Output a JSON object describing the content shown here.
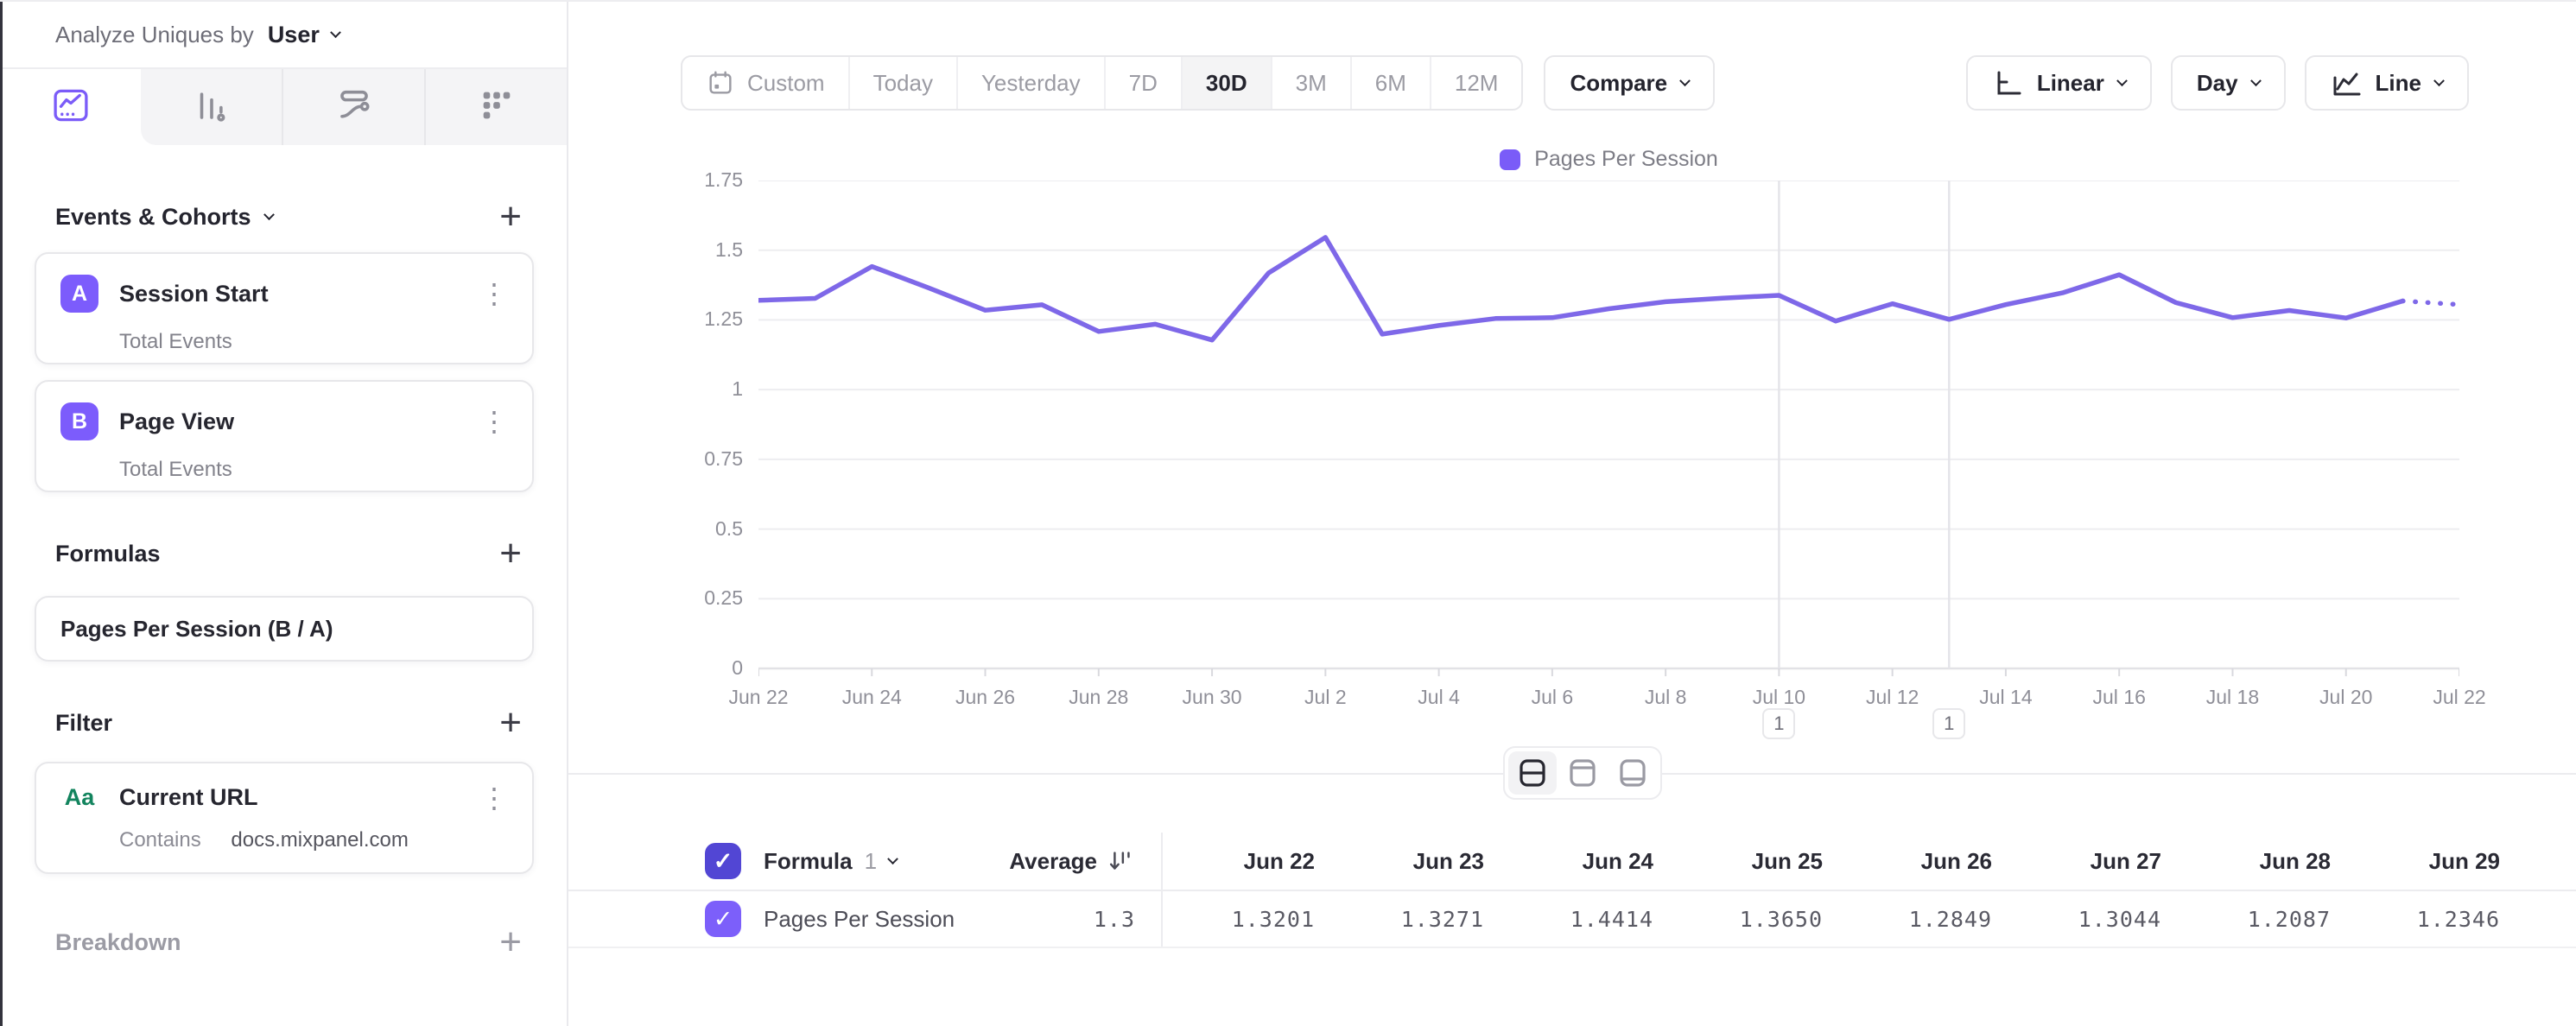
{
  "colors": {
    "accent": "#7856ff",
    "line": "#7e68e8",
    "legend_swatch": "#7a5cf8",
    "badge": "#7c5cfc",
    "checkbox_header": "#5246d4",
    "checkbox_row": "#7c5ffa",
    "filter_type_green": "#13845e"
  },
  "sidebar": {
    "analyze_label": "Analyze Uniques by",
    "analyze_value": "User",
    "tabs": [
      "insights-line-chart-icon",
      "bar-chart-icon",
      "flows-icon",
      "retention-grid-icon"
    ],
    "events": {
      "title": "Events & Cohorts",
      "add_label": "+",
      "items": [
        {
          "badge": "A",
          "name": "Session Start",
          "measure": "Total Events"
        },
        {
          "badge": "B",
          "name": "Page View",
          "measure": "Total Events"
        }
      ]
    },
    "formulas": {
      "title": "Formulas",
      "add_label": "+",
      "items": [
        {
          "name": "Pages Per Session (B / A)"
        }
      ]
    },
    "filter": {
      "title": "Filter",
      "add_label": "+",
      "items": [
        {
          "icon": "Aa",
          "name": "Current URL",
          "operator": "Contains",
          "value": "docs.mixpanel.com"
        }
      ]
    },
    "breakdown": {
      "title": "Breakdown",
      "add_label": "+"
    }
  },
  "toolbar": {
    "date_ranges": [
      "Custom",
      "Today",
      "Yesterday",
      "7D",
      "30D",
      "3M",
      "6M",
      "12M"
    ],
    "active_range": "30D",
    "compare_label": "Compare",
    "y_scale_label": "Linear",
    "interval_label": "Day",
    "chart_type_label": "Line"
  },
  "chart_data": {
    "type": "line",
    "legend": [
      "Pages Per Session"
    ],
    "x": [
      "Jun 22",
      "Jun 23",
      "Jun 24",
      "Jun 25",
      "Jun 26",
      "Jun 27",
      "Jun 28",
      "Jun 29",
      "Jun 30",
      "Jul 1",
      "Jul 2",
      "Jul 3",
      "Jul 4",
      "Jul 5",
      "Jul 6",
      "Jul 7",
      "Jul 8",
      "Jul 9",
      "Jul 10",
      "Jul 11",
      "Jul 12",
      "Jul 13",
      "Jul 14",
      "Jul 15",
      "Jul 16",
      "Jul 17",
      "Jul 18",
      "Jul 19",
      "Jul 20",
      "Jul 21",
      "Jul 22"
    ],
    "series": [
      {
        "name": "Pages Per Session",
        "values": [
          1.3201,
          1.3271,
          1.4414,
          1.365,
          1.2849,
          1.3044,
          1.2087,
          1.2346,
          1.178,
          1.419,
          1.546,
          1.199,
          1.23,
          1.255,
          1.258,
          1.29,
          1.315,
          1.328,
          1.338,
          1.246,
          1.308,
          1.252,
          1.305,
          1.347,
          1.412,
          1.312,
          1.258,
          1.284,
          1.257,
          1.318,
          1.305
        ]
      }
    ],
    "ylim": [
      0,
      1.75
    ],
    "ytick_labels": [
      "1.75",
      "1.5",
      "1.25",
      "1",
      "0.75",
      "0.5",
      "0.25",
      "0"
    ],
    "xtick_labels": [
      "Jun 22",
      "Jun 24",
      "Jun 26",
      "Jun 28",
      "Jun 30",
      "Jul 2",
      "Jul 4",
      "Jul 6",
      "Jul 8",
      "Jul 10",
      "Jul 12",
      "Jul 14",
      "Jul 16",
      "Jul 18",
      "Jul 20",
      "Jul 22"
    ],
    "dotted_from_index": 29,
    "annotations": [
      {
        "index": 18,
        "date": "Jul 10",
        "count": "1"
      },
      {
        "index": 21,
        "date": "Jul 13",
        "count": "1"
      }
    ],
    "grid": "horizontal",
    "legend_position": "top-center"
  },
  "table": {
    "group_label": "Formula",
    "group_index": "1",
    "average_label": "Average",
    "date_columns": [
      "Jun 22",
      "Jun 23",
      "Jun 24",
      "Jun 25",
      "Jun 26",
      "Jun 27",
      "Jun 28",
      "Jun 29"
    ],
    "rows": [
      {
        "name": "Pages Per Session",
        "checked": true,
        "average": "1.3",
        "values": [
          "1.3201",
          "1.3271",
          "1.4414",
          "1.3650",
          "1.2849",
          "1.3044",
          "1.2087",
          "1.2346"
        ]
      }
    ]
  }
}
